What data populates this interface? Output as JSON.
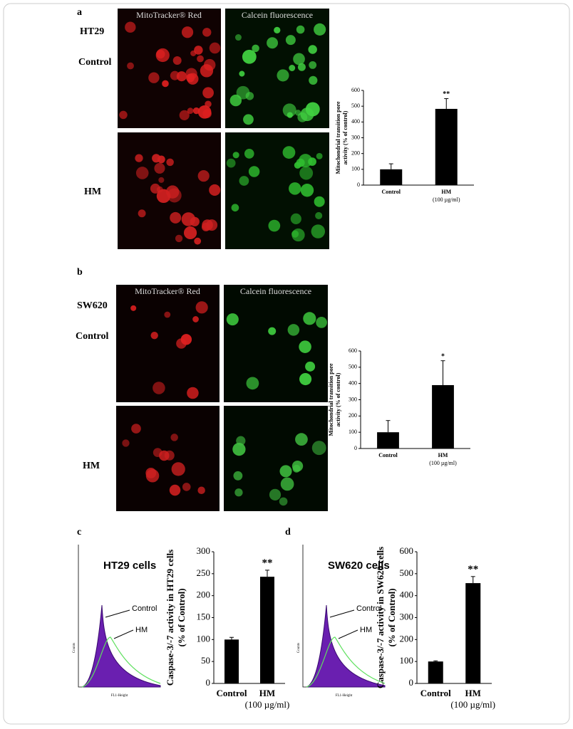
{
  "panels": {
    "a": {
      "label": "a",
      "row_title": "HT29",
      "row1": "Control",
      "row2": "HM",
      "col1": "MitoTracker® Red",
      "col2": "Calcein fluorescence"
    },
    "b": {
      "label": "b",
      "row_title": "SW620",
      "row1": "Control",
      "row2": "HM",
      "col1": "MitoTracker® Red",
      "col2": "Calcein fluorescence"
    },
    "c": {
      "label": "c",
      "hist_title": "HT29 cells",
      "hist_control": "Control",
      "hist_hm": "HM",
      "hist_ylabel": "Counts",
      "hist_xlabel": "FL1-Height"
    },
    "d": {
      "label": "d",
      "hist_title": "SW620 cells",
      "hist_control": "Control",
      "hist_hm": "HM",
      "hist_ylabel": "Counts",
      "hist_xlabel": "FL1-Height"
    }
  },
  "chart_data": [
    {
      "type": "bar",
      "ylabel": [
        "Mitochondrial transition pore",
        "activity (% of control)"
      ],
      "categories": [
        "Control",
        "HM"
      ],
      "category_sublabels": [
        null,
        "(100 µg/ml)"
      ],
      "values": [
        100,
        483
      ],
      "errors": [
        35,
        65
      ],
      "annotations": [
        null,
        "**"
      ],
      "color": "#000000",
      "ylim": [
        0,
        600
      ],
      "yticks": [
        0,
        100,
        200,
        300,
        400,
        500,
        600
      ]
    },
    {
      "type": "bar",
      "ylabel": [
        "Mitochondrial transition pore",
        "activity (% of control)"
      ],
      "categories": [
        "Control",
        "HM"
      ],
      "category_sublabels": [
        null,
        "(100 µg/ml)"
      ],
      "values": [
        100,
        390
      ],
      "errors": [
        72,
        150
      ],
      "annotations": [
        null,
        "*"
      ],
      "color": "#000000",
      "ylim": [
        0,
        600
      ],
      "yticks": [
        0,
        100,
        200,
        300,
        400,
        500,
        600
      ]
    },
    {
      "type": "bar",
      "ylabel": [
        "Caspase-3/-7 activity in HT29 cells",
        "(% of Control)"
      ],
      "categories": [
        "Control",
        "HM"
      ],
      "category_sublabels": [
        null,
        "(100 µg/ml)"
      ],
      "values": [
        100,
        243
      ],
      "errors": [
        5,
        15
      ],
      "annotations": [
        null,
        "**"
      ],
      "color": "#000000",
      "ylim": [
        0,
        300
      ],
      "yticks": [
        0,
        50,
        100,
        150,
        200,
        250,
        300
      ]
    },
    {
      "type": "bar",
      "ylabel": [
        "Caspase-3/-7 activity in SW620 cells",
        "(% of Control)"
      ],
      "categories": [
        "Control",
        "HM"
      ],
      "category_sublabels": [
        null,
        "(100 µg/ml)"
      ],
      "values": [
        100,
        457
      ],
      "errors": [
        3,
        30
      ],
      "annotations": [
        null,
        "**"
      ],
      "color": "#000000",
      "ylim": [
        0,
        600
      ],
      "yticks": [
        0,
        100,
        200,
        300,
        400,
        500,
        600
      ]
    }
  ]
}
